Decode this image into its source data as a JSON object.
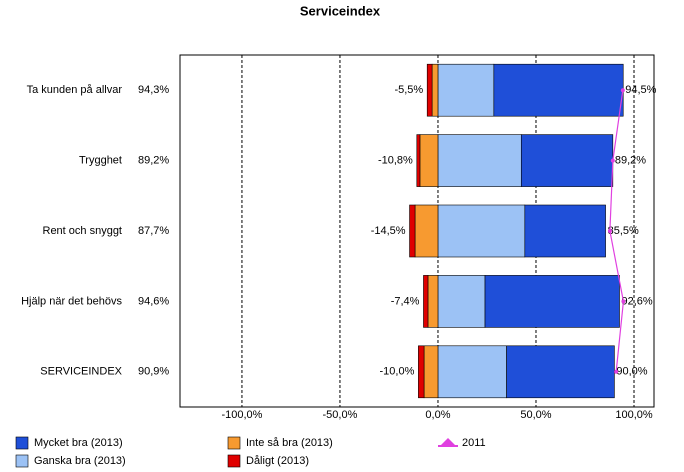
{
  "chart_data": {
    "type": "diverging-bar",
    "title": "Serviceindex",
    "categories": [
      "Ta kunden på allvar",
      "Trygghet",
      "Rent och snyggt",
      "Hjälp när det behövs",
      "SERVICEINDEX"
    ],
    "series": [
      {
        "name": "Mycket bra (2013)",
        "color": "#1f4fd8",
        "values": [
          66.0,
          46.7,
          41.2,
          68.6,
          55.0
        ]
      },
      {
        "name": "Ganska bra (2013)",
        "color": "#9cc2f5",
        "values": [
          28.5,
          42.5,
          44.3,
          24.0,
          35.0
        ]
      },
      {
        "name": "Inte så bra (2013)",
        "color": "#f79a30",
        "values": [
          -3.0,
          -9.2,
          -11.7,
          -5.1,
          -7.1
        ]
      },
      {
        "name": "Dåligt (2013)",
        "color": "#e00000",
        "values": [
          -2.5,
          -1.6,
          -2.8,
          -2.3,
          -2.9
        ]
      },
      {
        "name": "2011",
        "color": "#e040e0",
        "type": "line",
        "values": [
          94.3,
          89.2,
          87.7,
          94.6,
          90.9
        ],
        "value_labels": [
          "94,3%",
          "89,2%",
          "87,7%",
          "94,6%",
          "90,9%"
        ]
      }
    ],
    "negative_totals": {
      "values": [
        -5.5,
        -10.8,
        -14.5,
        -7.4,
        -10.0
      ],
      "value_labels": [
        "-5,5%",
        "-10,8%",
        "-14,5%",
        "-7,4%",
        "-10,0%"
      ]
    },
    "positive_totals": {
      "values": [
        94.5,
        89.2,
        85.5,
        92.6,
        90.0
      ],
      "value_labels": [
        "94,5%",
        "89,2%",
        "85,5%",
        "92,6%",
        "90,0%"
      ]
    },
    "xlim": [
      -131.6,
      110.2
    ],
    "xticks": [
      {
        "value": -100,
        "label": "-100,0%"
      },
      {
        "value": -50,
        "label": "-50,0%"
      },
      {
        "value": 0,
        "label": "0,0%"
      },
      {
        "value": 50,
        "label": "50,0%"
      },
      {
        "value": 100,
        "label": "100,0%"
      }
    ],
    "grid": true
  }
}
